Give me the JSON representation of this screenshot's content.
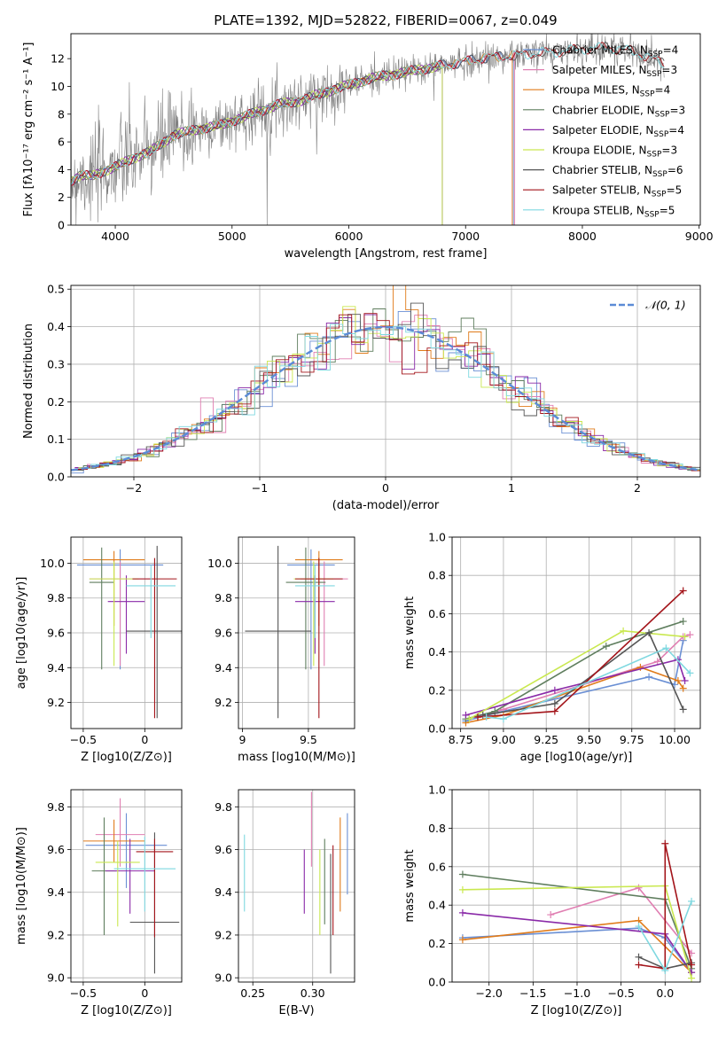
{
  "figure_title": "PLATE=1392, MJD=52822, FIBERID=0067, z=0.049",
  "colors": {
    "Chabrier MILES": "#6a8fd4",
    "Salpeter MILES": "#e07fb2",
    "Kroupa MILES": "#e07b1a",
    "Chabrier ELODIE": "#5f7e5e",
    "Salpeter ELODIE": "#8a2aa8",
    "Kroupa ELODIE": "#c9e84f",
    "Chabrier STELIB": "#555555",
    "Salpeter STELIB": "#a3141a",
    "Kroupa STELIB": "#7fd8e0",
    "data": "#808080",
    "grid": "#b0b0b0",
    "normal": "#5b8bd6"
  },
  "chart_data": [
    {
      "id": "spectrum",
      "type": "line",
      "title": "PLATE=1392, MJD=52822, FIBERID=0067, z=0.049",
      "xlabel": "wavelength [Angstrom, rest frame]",
      "ylabel": "Flux [fλ10⁻¹⁷ erg cm⁻² s⁻¹ A⁻¹]",
      "xlim": [
        3620,
        9010
      ],
      "ylim": [
        0,
        13.8
      ],
      "xticks": [
        4000,
        5000,
        6000,
        7000,
        8000,
        9000
      ],
      "yticks": [
        0,
        2,
        4,
        6,
        8,
        10,
        12
      ],
      "grid": false,
      "legend_position": "top-right",
      "legend": [
        {
          "model": "Chabrier MILES",
          "n": "4"
        },
        {
          "model": "Salpeter MILES",
          "n": "3"
        },
        {
          "model": "Kroupa MILES",
          "n": "4"
        },
        {
          "model": "Chabrier ELODIE",
          "n": "3"
        },
        {
          "model": "Salpeter ELODIE",
          "n": "4"
        },
        {
          "model": "Kroupa ELODIE",
          "n": "3"
        },
        {
          "model": "Chabrier STELIB",
          "n": "6"
        },
        {
          "model": "Salpeter STELIB",
          "n": "5"
        },
        {
          "model": "Kroupa STELIB",
          "n": "5"
        }
      ],
      "continuum": [
        [
          3620,
          3.2
        ],
        [
          3700,
          3.6
        ],
        [
          3800,
          3.5
        ],
        [
          3900,
          3.9
        ],
        [
          4000,
          4.2
        ],
        [
          4100,
          4.6
        ],
        [
          4200,
          5.0
        ],
        [
          4300,
          5.3
        ],
        [
          4400,
          5.9
        ],
        [
          4500,
          6.5
        ],
        [
          4700,
          6.9
        ],
        [
          4900,
          7.2
        ],
        [
          5000,
          7.5
        ],
        [
          5200,
          8.1
        ],
        [
          5400,
          8.7
        ],
        [
          5600,
          9.0
        ],
        [
          5800,
          9.6
        ],
        [
          6000,
          10.1
        ],
        [
          6200,
          10.6
        ],
        [
          6400,
          10.9
        ],
        [
          6600,
          11.2
        ],
        [
          6800,
          11.5
        ],
        [
          7000,
          11.8
        ],
        [
          7200,
          12.1
        ],
        [
          7400,
          12.2
        ],
        [
          7600,
          12.4
        ],
        [
          7800,
          12.5
        ],
        [
          8000,
          12.7
        ],
        [
          8200,
          12.8
        ],
        [
          8400,
          12.6
        ],
        [
          8600,
          12.0
        ],
        [
          8700,
          11.6
        ]
      ],
      "model_end": {
        "Chabrier MILES": 7410,
        "Salpeter MILES": 7420,
        "Kroupa MILES": 7400,
        "Chabrier ELODIE": 6800,
        "Salpeter ELODIE": 6800,
        "Kroupa ELODIE": 6800,
        "Chabrier STELIB": 8700,
        "Salpeter STELIB": 8700,
        "Kroupa STELIB": 8700
      }
    },
    {
      "id": "residuals",
      "type": "line",
      "xlabel": "(data-model)/error",
      "ylabel": "Normed distribution",
      "xlim": [
        -2.5,
        2.5
      ],
      "ylim": [
        0,
        0.51
      ],
      "xticks": [
        -2,
        -1,
        0,
        1,
        2
      ],
      "yticks": [
        0.0,
        0.1,
        0.2,
        0.3,
        0.4,
        0.5
      ],
      "grid": true,
      "legend_position": "top-right",
      "legend": [
        {
          "name": "𝒩(0, 1)"
        }
      ],
      "bin_width": 0.1,
      "histogram_note": "nine step histograms scattered around the standard normal curve",
      "normal_curve": {
        "mean": 0,
        "sigma": 1
      }
    },
    {
      "id": "age_vs_Z",
      "type": "scatter",
      "xlabel": "Z [log10(Z/Z⊙)]",
      "ylabel": "age  [log10(age/yr)]",
      "xlim": [
        -0.6,
        0.3
      ],
      "ylim": [
        9.05,
        10.15
      ],
      "xticks": [
        -0.5,
        0.0
      ],
      "yticks": [
        9.2,
        9.4,
        9.6,
        9.8,
        10.0
      ],
      "grid": true,
      "points": [
        {
          "model": "Chabrier MILES",
          "x": -0.2,
          "y": 9.99,
          "xerr": 0.35,
          "yerr": [
            0.6,
            0.09
          ]
        },
        {
          "model": "Salpeter MILES",
          "x": -0.2,
          "y": 9.91,
          "xerr": 0.25,
          "yerr": [
            0.5,
            0.1
          ]
        },
        {
          "model": "Kroupa MILES",
          "x": -0.25,
          "y": 10.02,
          "xerr": 0.25,
          "yerr": [
            0.38,
            0.05
          ]
        },
        {
          "model": "Chabrier ELODIE",
          "x": -0.35,
          "y": 9.89,
          "xerr": 0.1,
          "yerr": [
            0.5,
            0.2
          ]
        },
        {
          "model": "Salpeter ELODIE",
          "x": -0.15,
          "y": 9.78,
          "xerr": 0.15,
          "yerr": [
            0.3,
            0.15
          ]
        },
        {
          "model": "Kroupa ELODIE",
          "x": -0.25,
          "y": 9.91,
          "xerr": 0.2,
          "yerr": [
            0.5,
            0.1
          ]
        },
        {
          "model": "Chabrier STELIB",
          "x": 0.1,
          "y": 9.61,
          "xerr": 0.25,
          "yerr": [
            0.5,
            0.49
          ]
        },
        {
          "model": "Salpeter STELIB",
          "x": 0.08,
          "y": 9.91,
          "xerr": 0.18,
          "yerr": [
            0.8,
            0.12
          ]
        },
        {
          "model": "Kroupa STELIB",
          "x": 0.05,
          "y": 9.87,
          "xerr": 0.2,
          "yerr": [
            0.3,
            0.12
          ]
        }
      ]
    },
    {
      "id": "age_vs_mass",
      "type": "scatter",
      "xlabel": "mass [log10(M/M⊙)]",
      "ylabel": "",
      "xlim": [
        8.97,
        9.85
      ],
      "ylim": [
        9.05,
        10.15
      ],
      "xticks": [
        9.0,
        9.5
      ],
      "yticks": [
        9.2,
        9.4,
        9.6,
        9.8,
        10.0
      ],
      "grid": true,
      "points": [
        {
          "model": "Chabrier MILES",
          "x": 9.52,
          "y": 9.99,
          "xerr": 0.18,
          "yerr": [
            0.6,
            0.09
          ]
        },
        {
          "model": "Salpeter MILES",
          "x": 9.62,
          "y": 9.91,
          "xerr": 0.18,
          "yerr": [
            0.5,
            0.1
          ]
        },
        {
          "model": "Kroupa MILES",
          "x": 9.58,
          "y": 10.02,
          "xerr": 0.18,
          "yerr": [
            0.38,
            0.05
          ]
        },
        {
          "model": "Chabrier ELODIE",
          "x": 9.48,
          "y": 9.89,
          "xerr": 0.15,
          "yerr": [
            0.5,
            0.2
          ]
        },
        {
          "model": "Salpeter ELODIE",
          "x": 9.55,
          "y": 9.78,
          "xerr": 0.15,
          "yerr": [
            0.3,
            0.15
          ]
        },
        {
          "model": "Kroupa ELODIE",
          "x": 9.54,
          "y": 9.91,
          "xerr": 0.15,
          "yerr": [
            0.5,
            0.1
          ]
        },
        {
          "model": "Chabrier STELIB",
          "x": 9.27,
          "y": 9.61,
          "xerr": 0.25,
          "yerr": [
            0.5,
            0.49
          ]
        },
        {
          "model": "Salpeter STELIB",
          "x": 9.58,
          "y": 9.91,
          "xerr": 0.18,
          "yerr": [
            0.8,
            0.12
          ]
        },
        {
          "model": "Kroupa STELIB",
          "x": 9.55,
          "y": 9.87,
          "xerr": 0.15,
          "yerr": [
            0.3,
            0.12
          ]
        }
      ]
    },
    {
      "id": "weight_vs_age",
      "type": "line",
      "xlabel": "age  [log10(age/yr)]",
      "ylabel": "mass weight",
      "xlim": [
        8.7,
        10.15
      ],
      "ylim": [
        0,
        1.0
      ],
      "xticks": [
        8.75,
        9.0,
        9.25,
        9.5,
        9.75,
        10.0
      ],
      "yticks": [
        0.0,
        0.2,
        0.4,
        0.6,
        0.8,
        1.0
      ],
      "grid": true,
      "series": [
        {
          "model": "Chabrier MILES",
          "x": [
            8.78,
            8.95,
            9.85,
            10.0,
            10.05
          ],
          "y": [
            0.04,
            0.08,
            0.27,
            0.23,
            0.46
          ]
        },
        {
          "model": "Salpeter MILES",
          "x": [
            8.85,
            9.0,
            9.9,
            10.05,
            10.09
          ],
          "y": [
            0.06,
            0.1,
            0.35,
            0.48,
            0.49
          ]
        },
        {
          "model": "Kroupa MILES",
          "x": [
            8.78,
            9.0,
            9.8,
            10.02,
            10.05
          ],
          "y": [
            0.03,
            0.07,
            0.32,
            0.25,
            0.21
          ]
        },
        {
          "model": "Chabrier ELODIE",
          "x": [
            8.78,
            8.95,
            9.6,
            10.05
          ],
          "y": [
            0.05,
            0.09,
            0.43,
            0.56
          ]
        },
        {
          "model": "Salpeter ELODIE",
          "x": [
            8.78,
            9.3,
            10.02,
            10.06
          ],
          "y": [
            0.07,
            0.2,
            0.36,
            0.25
          ]
        },
        {
          "model": "Kroupa ELODIE",
          "x": [
            8.8,
            9.7,
            10.06
          ],
          "y": [
            0.05,
            0.51,
            0.48
          ]
        },
        {
          "model": "Chabrier STELIB",
          "x": [
            8.88,
            9.3,
            9.85,
            10.05
          ],
          "y": [
            0.07,
            0.13,
            0.5,
            0.1
          ]
        },
        {
          "model": "Salpeter STELIB",
          "x": [
            8.85,
            9.3,
            10.05
          ],
          "y": [
            0.06,
            0.09,
            0.72
          ]
        },
        {
          "model": "Kroupa STELIB",
          "x": [
            8.9,
            9.0,
            9.95,
            10.09
          ],
          "y": [
            0.06,
            0.05,
            0.42,
            0.29
          ]
        }
      ]
    },
    {
      "id": "mass_vs_Z",
      "type": "scatter",
      "xlabel": "Z [log10(Z/Z⊙)]",
      "ylabel": "mass [log10(M/M⊙)]",
      "xlim": [
        -0.6,
        0.3
      ],
      "ylim": [
        8.98,
        9.88
      ],
      "xticks": [
        -0.5,
        0.0
      ],
      "yticks": [
        9.0,
        9.2,
        9.4,
        9.6,
        9.8
      ],
      "grid": true,
      "points": [
        {
          "model": "Chabrier MILES",
          "x": -0.15,
          "y": 9.62,
          "xerr": 0.33,
          "yerr": [
            0.2,
            0.15
          ]
        },
        {
          "model": "Salpeter MILES",
          "x": -0.2,
          "y": 9.67,
          "xerr": 0.2,
          "yerr": [
            0.15,
            0.17
          ]
        },
        {
          "model": "Kroupa MILES",
          "x": -0.25,
          "y": 9.64,
          "xerr": 0.25,
          "yerr": [
            0.1,
            0.1
          ]
        },
        {
          "model": "Chabrier ELODIE",
          "x": -0.33,
          "y": 9.5,
          "xerr": 0.1,
          "yerr": [
            0.3,
            0.25
          ]
        },
        {
          "model": "Salpeter ELODIE",
          "x": -0.12,
          "y": 9.5,
          "xerr": 0.2,
          "yerr": [
            0.2,
            0.15
          ]
        },
        {
          "model": "Kroupa ELODIE",
          "x": -0.22,
          "y": 9.54,
          "xerr": 0.18,
          "yerr": [
            0.3,
            0.1
          ]
        },
        {
          "model": "Chabrier STELIB",
          "x": 0.08,
          "y": 9.26,
          "xerr": 0.2,
          "yerr": [
            0.24,
            0.42
          ]
        },
        {
          "model": "Salpeter STELIB",
          "x": 0.08,
          "y": 9.59,
          "xerr": 0.15,
          "yerr": [
            0.4,
            0.06
          ]
        },
        {
          "model": "Kroupa STELIB",
          "x": 0.0,
          "y": 9.51,
          "xerr": 0.25,
          "yerr": [
            0.2,
            0.15
          ]
        }
      ]
    },
    {
      "id": "mass_vs_ebv",
      "type": "scatter",
      "xlabel": "E(B-V)",
      "ylabel": "",
      "xlim": [
        0.238,
        0.335
      ],
      "ylim": [
        8.98,
        9.88
      ],
      "xticks": [
        0.25,
        0.3
      ],
      "yticks": [
        9.0,
        9.2,
        9.4,
        9.6,
        9.8
      ],
      "grid": true,
      "points": [
        {
          "model": "Chabrier MILES",
          "x": 0.329,
          "y": 9.58,
          "yerr": [
            0.19,
            0.19
          ]
        },
        {
          "model": "Salpeter MILES",
          "x": 0.299,
          "y": 9.67,
          "yerr": [
            0.15,
            0.2
          ]
        },
        {
          "model": "Kroupa MILES",
          "x": 0.323,
          "y": 9.53,
          "yerr": [
            0.22,
            0.22
          ]
        },
        {
          "model": "Chabrier ELODIE",
          "x": 0.31,
          "y": 9.45,
          "yerr": [
            0.2,
            0.2
          ]
        },
        {
          "model": "Salpeter ELODIE",
          "x": 0.293,
          "y": 9.45,
          "yerr": [
            0.15,
            0.15
          ]
        },
        {
          "model": "Kroupa ELODIE",
          "x": 0.306,
          "y": 9.4,
          "yerr": [
            0.2,
            0.2
          ]
        },
        {
          "model": "Chabrier STELIB",
          "x": 0.315,
          "y": 9.3,
          "yerr": [
            0.28,
            0.28
          ]
        },
        {
          "model": "Salpeter STELIB",
          "x": 0.317,
          "y": 9.41,
          "yerr": [
            0.21,
            0.21
          ]
        },
        {
          "model": "Kroupa STELIB",
          "x": 0.243,
          "y": 9.49,
          "yerr": [
            0.18,
            0.18
          ]
        }
      ]
    },
    {
      "id": "weight_vs_Z",
      "type": "line",
      "xlabel": "Z [log10(Z/Z⊙)]",
      "ylabel": "mass weight",
      "xlim": [
        -2.42,
        0.4
      ],
      "ylim": [
        0,
        1.0
      ],
      "xticks": [
        -2.0,
        -1.5,
        -1.0,
        -0.5,
        0.0
      ],
      "yticks": [
        0.0,
        0.2,
        0.4,
        0.6,
        0.8,
        1.0
      ],
      "grid": true,
      "series": [
        {
          "model": "Chabrier MILES",
          "x": [
            -2.3,
            -0.3,
            0.0,
            0.3
          ],
          "y": [
            0.23,
            0.28,
            0.23,
            0.05
          ]
        },
        {
          "model": "Salpeter MILES",
          "x": [
            -1.3,
            -0.3,
            0.3
          ],
          "y": [
            0.35,
            0.49,
            0.15
          ]
        },
        {
          "model": "Kroupa MILES",
          "x": [
            -2.3,
            -0.3,
            0.3
          ],
          "y": [
            0.22,
            0.32,
            0.05
          ]
        },
        {
          "model": "Chabrier ELODIE",
          "x": [
            -2.3,
            0.0,
            0.3
          ],
          "y": [
            0.56,
            0.43,
            0.07
          ]
        },
        {
          "model": "Salpeter ELODIE",
          "x": [
            -2.3,
            0.0,
            0.3
          ],
          "y": [
            0.36,
            0.25,
            0.05
          ]
        },
        {
          "model": "Kroupa ELODIE",
          "x": [
            -2.3,
            0.0,
            0.3
          ],
          "y": [
            0.48,
            0.5,
            0.02
          ]
        },
        {
          "model": "Chabrier STELIB",
          "x": [
            -0.3,
            0.0,
            0.3
          ],
          "y": [
            0.13,
            0.07,
            0.1
          ]
        },
        {
          "model": "Salpeter STELIB",
          "x": [
            -0.3,
            0.0,
            0.0,
            0.3
          ],
          "y": [
            0.09,
            0.07,
            0.72,
            0.09
          ]
        },
        {
          "model": "Kroupa STELIB",
          "x": [
            -0.3,
            0.0,
            0.3
          ],
          "y": [
            0.29,
            0.06,
            0.42
          ]
        }
      ]
    }
  ]
}
